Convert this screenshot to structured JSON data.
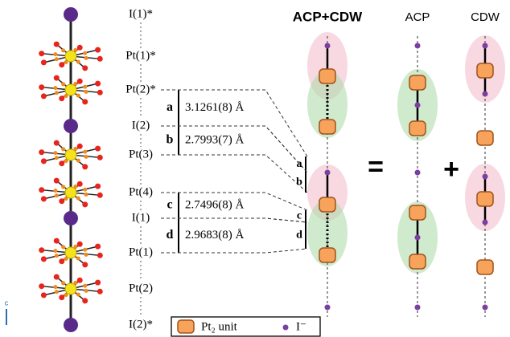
{
  "atom_labels": [
    "I(1)*",
    "Pt(1)*",
    "Pt(2)*",
    "I(2)",
    "Pt(3)",
    "Pt(4)",
    "I(1)",
    "Pt(1)",
    "Pt(2)",
    "I(2)*"
  ],
  "distances": [
    {
      "letter": "a",
      "text": "3.1261(8) Å"
    },
    {
      "letter": "b",
      "text": "2.7993(7) Å"
    },
    {
      "letter": "c",
      "text": "2.7496(8) Å"
    },
    {
      "letter": "d",
      "text": "2.9683(8) Å"
    }
  ],
  "columns": [
    "ACP+CDW",
    "ACP",
    "CDW"
  ],
  "operators": [
    "=",
    "+"
  ],
  "legend": [
    "Pt₂ unit",
    "I⁻"
  ],
  "axis_label": "c"
}
